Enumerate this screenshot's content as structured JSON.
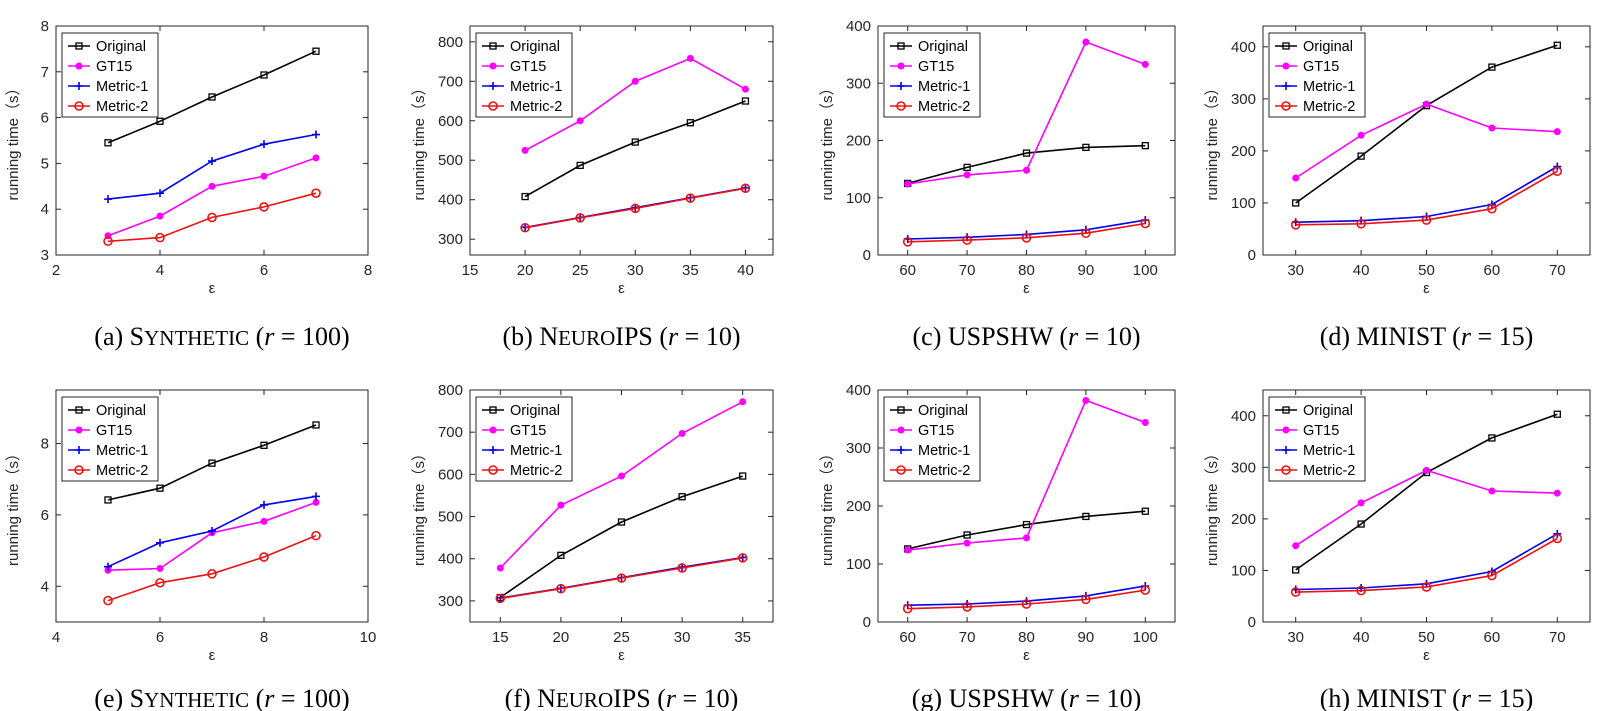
{
  "series_styles": [
    {
      "name": "Original",
      "color": "#000000",
      "marker": "square"
    },
    {
      "name": "GT15",
      "color": "#ff00ff",
      "marker": "dot"
    },
    {
      "name": "Metric-1",
      "color": "#0000ee",
      "marker": "plus"
    },
    {
      "name": "Metric-2",
      "color": "#ee1111",
      "marker": "circle"
    }
  ],
  "chart_data": [
    {
      "type": "line",
      "xlabel": "ε",
      "ylabel": "running time（s）",
      "xlim": [
        2,
        8
      ],
      "ylim": [
        3,
        8
      ],
      "xticks": [
        2,
        4,
        6,
        8
      ],
      "yticks": [
        3,
        4,
        5,
        6,
        7,
        8
      ],
      "x": [
        3,
        4,
        5,
        6,
        7
      ],
      "series": [
        {
          "name": "Original",
          "values": [
            5.45,
            5.92,
            6.45,
            6.93,
            7.45
          ]
        },
        {
          "name": "GT15",
          "values": [
            3.42,
            3.85,
            4.5,
            4.72,
            5.12
          ]
        },
        {
          "name": "Metric-1",
          "values": [
            4.22,
            4.35,
            5.05,
            5.42,
            5.63
          ]
        },
        {
          "name": "Metric-2",
          "values": [
            3.3,
            3.38,
            3.82,
            4.05,
            4.35
          ]
        }
      ],
      "caption": {
        "label": "(a)",
        "name_first": "S",
        "name_rest": "YNTHETIC",
        "param": "r",
        "value": "100"
      }
    },
    {
      "type": "line",
      "xlabel": "ε",
      "ylabel": "running time（s）",
      "xlim": [
        15,
        42.5
      ],
      "ylim": [
        260,
        840
      ],
      "xticks": [
        15,
        20,
        25,
        30,
        35,
        40
      ],
      "yticks": [
        300,
        400,
        500,
        600,
        700,
        800
      ],
      "x": [
        20,
        25,
        30,
        35,
        40
      ],
      "series": [
        {
          "name": "Original",
          "values": [
            408,
            487,
            546,
            595,
            650
          ]
        },
        {
          "name": "GT15",
          "values": [
            525,
            600,
            700,
            758,
            680
          ]
        },
        {
          "name": "Metric-1",
          "values": [
            330,
            355,
            380,
            405,
            430
          ]
        },
        {
          "name": "Metric-2",
          "values": [
            329,
            354,
            378,
            404,
            429
          ]
        }
      ],
      "caption": {
        "label": "(b)",
        "name_first": "N",
        "name_rest": "EURO",
        "name_tail": "IPS",
        "param": "r",
        "value": "10"
      }
    },
    {
      "type": "line",
      "xlabel": "ε",
      "ylabel": "running time（s）",
      "xlim": [
        55,
        105
      ],
      "ylim": [
        0,
        400
      ],
      "xticks": [
        60,
        70,
        80,
        90,
        100
      ],
      "yticks": [
        0,
        100,
        200,
        300,
        400
      ],
      "x": [
        60,
        70,
        80,
        90,
        100
      ],
      "series": [
        {
          "name": "Original",
          "values": [
            125,
            153,
            178,
            188,
            191
          ]
        },
        {
          "name": "GT15",
          "values": [
            124,
            140,
            148,
            372,
            333
          ]
        },
        {
          "name": "Metric-1",
          "values": [
            28,
            31,
            36,
            44,
            61
          ]
        },
        {
          "name": "Metric-2",
          "values": [
            23,
            26,
            30,
            38,
            55
          ]
        }
      ],
      "caption": {
        "label": "(c)",
        "name_first": "USPSHW",
        "name_rest": "",
        "param": "r",
        "value": "10"
      }
    },
    {
      "type": "line",
      "xlabel": "ε",
      "ylabel": "running time（s）",
      "xlim": [
        25,
        75
      ],
      "ylim": [
        0,
        440
      ],
      "xticks": [
        30,
        40,
        50,
        60,
        70
      ],
      "yticks": [
        0,
        100,
        200,
        300,
        400
      ],
      "x": [
        30,
        40,
        50,
        60,
        70
      ],
      "series": [
        {
          "name": "Original",
          "values": [
            100,
            190,
            287,
            361,
            403
          ]
        },
        {
          "name": "GT15",
          "values": [
            148,
            230,
            290,
            244,
            237
          ]
        },
        {
          "name": "Metric-1",
          "values": [
            63,
            66,
            74,
            97,
            170
          ]
        },
        {
          "name": "Metric-2",
          "values": [
            58,
            60,
            67,
            89,
            161
          ]
        }
      ],
      "caption": {
        "label": "(d)",
        "name_first": "MINIST",
        "name_rest": "",
        "param": "r",
        "value": "15"
      }
    },
    {
      "type": "line",
      "xlabel": "ε",
      "ylabel": "running time（s）",
      "xlim": [
        4,
        10
      ],
      "ylim": [
        3,
        9.5
      ],
      "xticks": [
        4,
        6,
        8,
        10
      ],
      "yticks": [
        4,
        6,
        8
      ],
      "x": [
        5,
        6,
        7,
        8,
        9
      ],
      "series": [
        {
          "name": "Original",
          "values": [
            6.42,
            6.75,
            7.45,
            7.95,
            8.52
          ]
        },
        {
          "name": "GT15",
          "values": [
            4.45,
            4.5,
            5.5,
            5.82,
            6.35
          ]
        },
        {
          "name": "Metric-1",
          "values": [
            4.55,
            5.22,
            5.55,
            6.28,
            6.52
          ]
        },
        {
          "name": "Metric-2",
          "values": [
            3.6,
            4.1,
            4.35,
            4.82,
            5.42
          ]
        }
      ],
      "caption": {
        "label": "(e)",
        "name_first": "S",
        "name_rest": "YNTHETIC",
        "param": "r",
        "value": "100"
      }
    },
    {
      "type": "line",
      "xlabel": "ε",
      "ylabel": "running time（s）",
      "xlim": [
        12.5,
        37.5
      ],
      "ylim": [
        250,
        800
      ],
      "xticks": [
        15,
        20,
        25,
        30,
        35
      ],
      "yticks": [
        300,
        400,
        500,
        600,
        700,
        800
      ],
      "x": [
        15,
        20,
        25,
        30,
        35
      ],
      "series": [
        {
          "name": "Original",
          "values": [
            308,
            408,
            487,
            547,
            596
          ]
        },
        {
          "name": "GT15",
          "values": [
            378,
            527,
            596,
            697,
            772
          ]
        },
        {
          "name": "Metric-1",
          "values": [
            307,
            330,
            355,
            380,
            403
          ]
        },
        {
          "name": "Metric-2",
          "values": [
            306,
            329,
            354,
            378,
            402
          ]
        }
      ],
      "caption": {
        "label": "(f)",
        "name_first": "N",
        "name_rest": "EURO",
        "name_tail": "IPS",
        "param": "r",
        "value": "10"
      }
    },
    {
      "type": "line",
      "xlabel": "ε",
      "ylabel": "running time（s）",
      "xlim": [
        55,
        105
      ],
      "ylim": [
        0,
        400
      ],
      "xticks": [
        60,
        70,
        80,
        90,
        100
      ],
      "yticks": [
        0,
        100,
        200,
        300,
        400
      ],
      "x": [
        60,
        70,
        80,
        90,
        100
      ],
      "series": [
        {
          "name": "Original",
          "values": [
            126,
            150,
            168,
            182,
            191
          ]
        },
        {
          "name": "GT15",
          "values": [
            124,
            136,
            145,
            382,
            344
          ]
        },
        {
          "name": "Metric-1",
          "values": [
            29,
            31,
            36,
            45,
            62
          ]
        },
        {
          "name": "Metric-2",
          "values": [
            23,
            26,
            31,
            39,
            55
          ]
        }
      ],
      "caption": {
        "label": "(g)",
        "name_first": "USPSHW",
        "name_rest": "",
        "param": "r",
        "value": "10"
      }
    },
    {
      "type": "line",
      "xlabel": "ε",
      "ylabel": "running time（s）",
      "xlim": [
        25,
        75
      ],
      "ylim": [
        0,
        450
      ],
      "xticks": [
        30,
        40,
        50,
        60,
        70
      ],
      "yticks": [
        0,
        100,
        200,
        300,
        400
      ],
      "x": [
        30,
        40,
        50,
        60,
        70
      ],
      "series": [
        {
          "name": "Original",
          "values": [
            101,
            190,
            290,
            357,
            403
          ]
        },
        {
          "name": "GT15",
          "values": [
            148,
            231,
            294,
            254,
            250
          ]
        },
        {
          "name": "Metric-1",
          "values": [
            63,
            66,
            74,
            98,
            171
          ]
        },
        {
          "name": "Metric-2",
          "values": [
            58,
            61,
            68,
            90,
            162
          ]
        }
      ],
      "caption": {
        "label": "(h)",
        "name_first": "MINIST",
        "name_rest": "",
        "param": "r",
        "value": "15"
      }
    }
  ]
}
